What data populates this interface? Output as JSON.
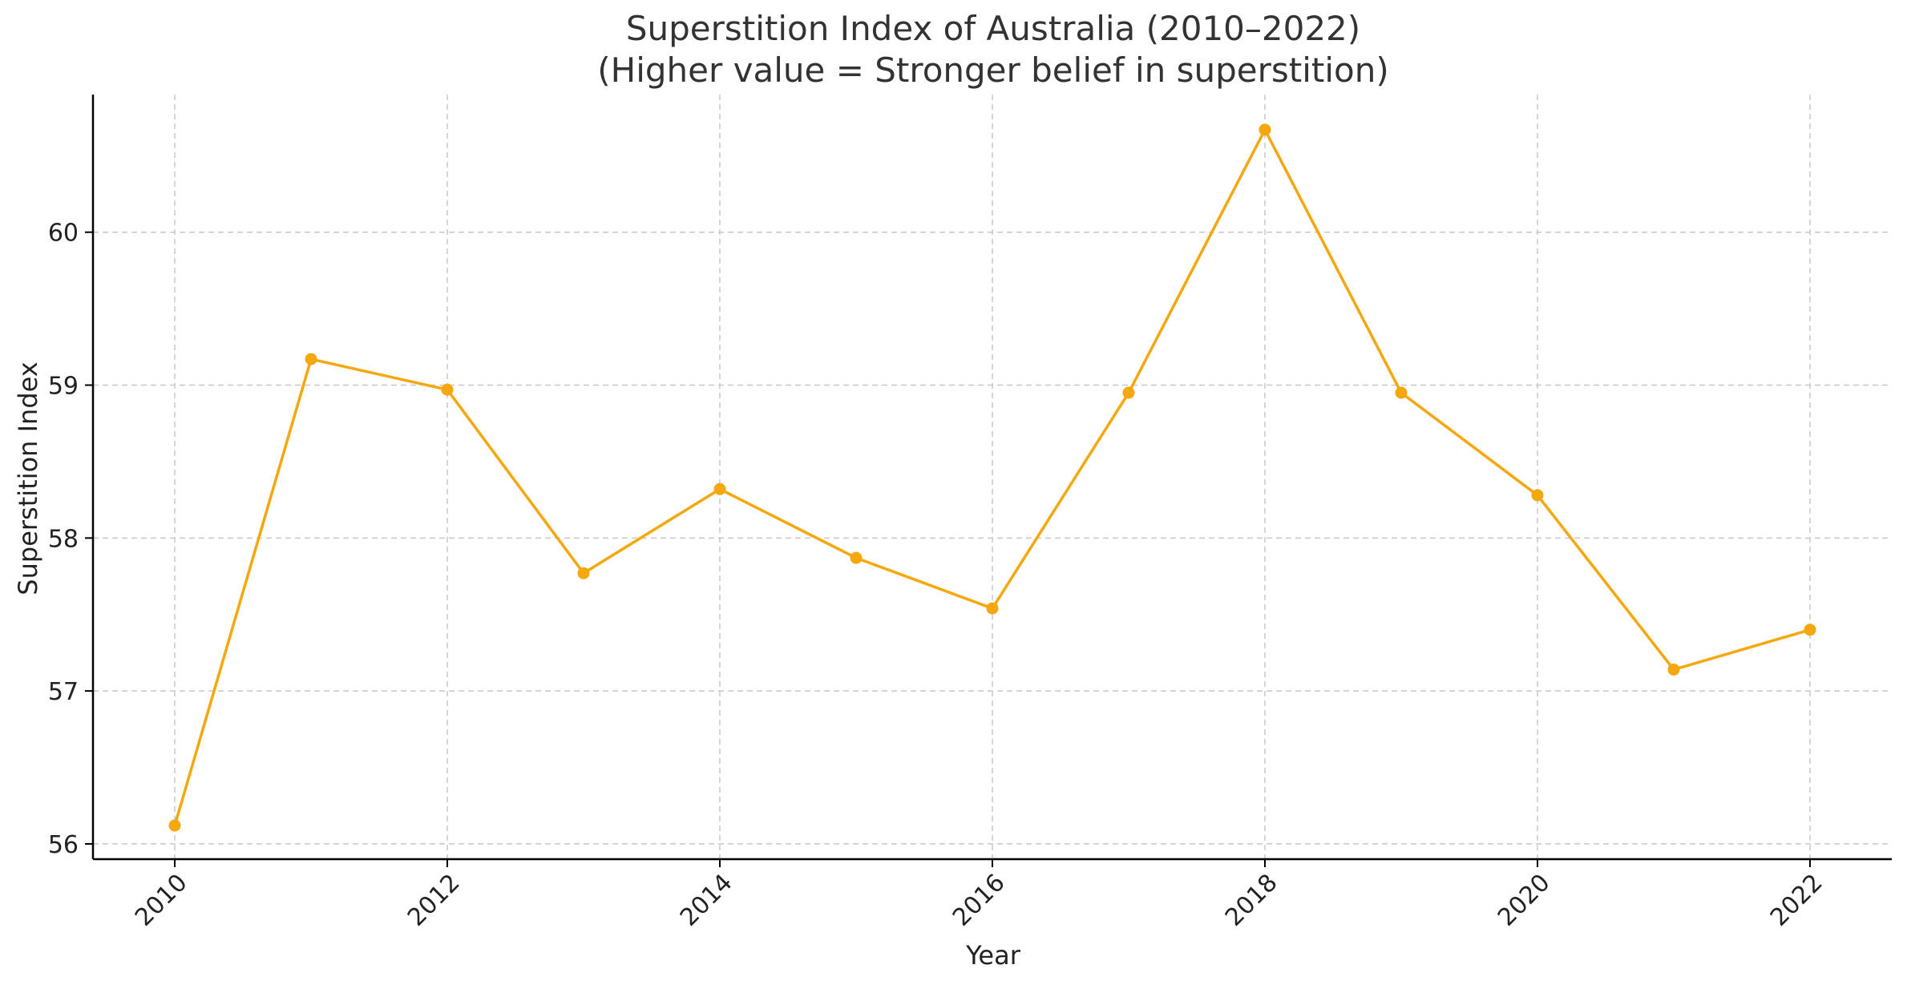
{
  "chart_data": {
    "type": "line",
    "title_line1": "Superstition Index of Australia (2010–2022)",
    "title_line2": "(Higher value = Stronger belief in superstition)",
    "xlabel": "Year",
    "ylabel": "Superstition Index",
    "x": [
      2010,
      2011,
      2012,
      2013,
      2014,
      2015,
      2016,
      2017,
      2018,
      2019,
      2020,
      2021,
      2022
    ],
    "series": [
      {
        "values": [
          56.12,
          59.17,
          58.97,
          57.77,
          58.32,
          57.87,
          57.54,
          58.95,
          60.67,
          58.95,
          58.28,
          57.14,
          57.4
        ],
        "color": "#f5a70e",
        "marker": "circle"
      }
    ],
    "xlim": [
      2009.4,
      2022.6
    ],
    "ylim": [
      55.9,
      60.9
    ],
    "xticks": [
      "2010",
      "2012",
      "2014",
      "2016",
      "2018",
      "2020",
      "2022"
    ],
    "yticks": [
      "56",
      "57",
      "58",
      "59",
      "60"
    ],
    "grid": true,
    "xtick_rotation_deg": 45
  }
}
